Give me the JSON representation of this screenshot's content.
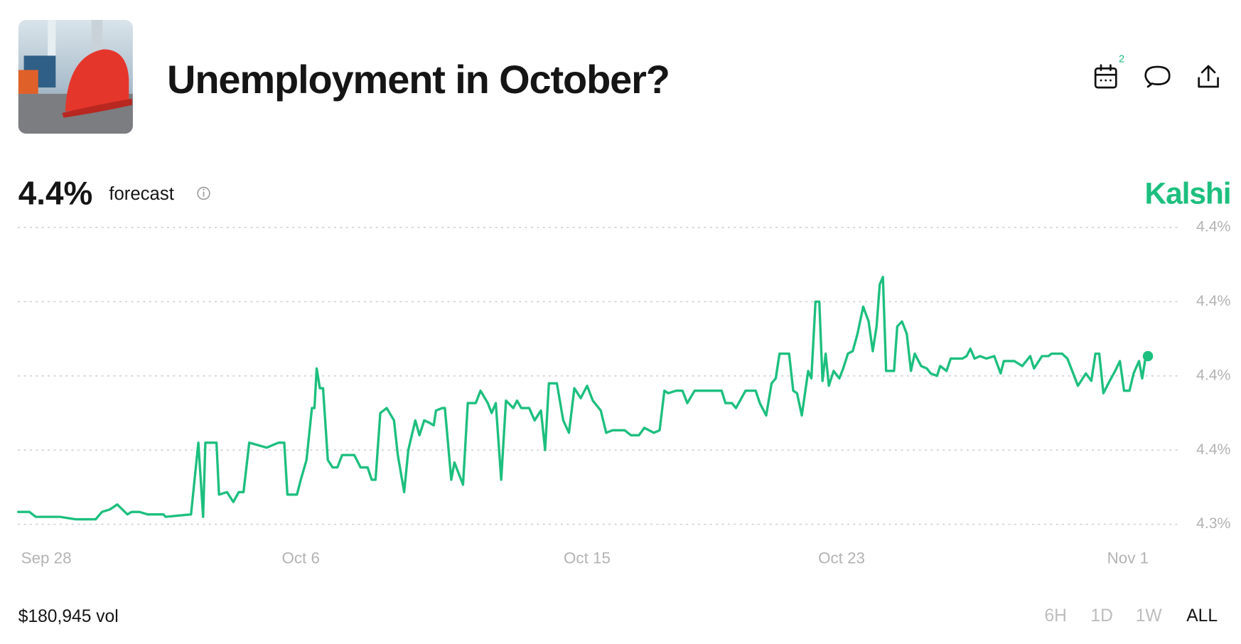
{
  "header": {
    "title": "Unemployment in October?",
    "forecast": "4.4%",
    "forecast_label": "forecast",
    "brand": "Kalshi",
    "calendar_badge": "2"
  },
  "footer": {
    "volume": "$180,945 vol",
    "ranges": [
      "6H",
      "1D",
      "1W",
      "ALL"
    ]
  },
  "chart_data": {
    "type": "line",
    "color": "#1dbf7e",
    "grid": true,
    "x": [
      -0.88,
      -0.53,
      -0.33,
      0.43,
      0.93,
      1.55,
      1.75,
      2.0,
      2.23,
      2.55,
      2.68,
      2.93,
      3.18,
      3.68,
      3.75,
      4.55,
      4.78,
      4.93,
      5.0,
      5.35,
      5.43,
      5.68,
      5.88,
      6.05,
      6.2,
      6.38,
      6.93,
      7.3,
      7.48,
      7.58,
      7.88,
      8.0,
      8.18,
      8.35,
      8.43,
      8.5,
      8.6,
      8.7,
      8.85,
      9.0,
      9.15,
      9.3,
      9.68,
      9.88,
      10.1,
      10.23,
      10.35,
      10.5,
      10.7,
      10.93,
      11.05,
      11.25,
      11.38,
      11.6,
      11.73,
      11.88,
      12.05,
      12.18,
      12.25,
      12.45,
      12.53,
      12.73,
      12.83,
      13.1,
      13.25,
      13.5,
      13.65,
      13.88,
      14.0,
      14.13,
      14.3,
      14.45,
      14.68,
      14.8,
      14.93,
      15.18,
      15.35,
      15.55,
      15.68,
      15.8,
      16.05,
      16.25,
      16.43,
      16.6,
      16.8,
      17.0,
      17.18,
      17.43,
      17.6,
      17.8,
      18.18,
      18.38,
      18.63,
      18.8,
      19.1,
      19.28,
      19.43,
      19.55,
      19.8,
      20.0,
      20.15,
      20.38,
      21.23,
      21.35,
      21.55,
      21.68,
      21.98,
      22.3,
      22.43,
      22.63,
      22.8,
      22.93,
      23.05,
      23.35,
      23.48,
      23.6,
      23.75,
      23.95,
      24.05,
      24.18,
      24.3,
      24.4,
      24.5,
      24.6,
      24.75,
      24.93,
      25.05,
      25.2,
      25.35,
      25.5,
      25.68,
      25.85,
      25.98,
      26.1,
      26.2,
      26.3,
      26.4,
      26.65,
      26.75,
      26.9,
      27.05,
      27.18,
      27.3,
      27.5,
      27.68,
      27.8,
      28.0,
      28.1,
      28.3,
      28.43,
      28.8,
      28.93,
      29.05,
      29.18,
      29.35,
      29.55,
      29.8,
      30.0,
      30.1,
      30.43,
      30.68,
      30.93,
      31.05,
      31.3,
      31.5,
      31.6,
      31.93,
      32.1,
      32.25,
      32.43,
      32.68,
      32.85,
      32.98,
      33.1,
      33.23,
      33.43,
      33.6,
      33.75,
      33.88,
      34.05,
      34.18,
      34.35,
      34.45,
      34.55,
      34.63
    ],
    "values": [
      4.325,
      4.325,
      4.323,
      4.323,
      4.322,
      4.322,
      4.325,
      4.326,
      4.328,
      4.324,
      4.325,
      4.325,
      4.324,
      4.324,
      4.323,
      4.324,
      4.353,
      4.323,
      4.353,
      4.353,
      4.332,
      4.333,
      4.329,
      4.333,
      4.333,
      4.353,
      4.351,
      4.353,
      4.353,
      4.332,
      4.332,
      4.338,
      4.346,
      4.367,
      4.367,
      4.383,
      4.375,
      4.375,
      4.346,
      4.343,
      4.343,
      4.348,
      4.348,
      4.343,
      4.343,
      4.338,
      4.338,
      4.365,
      4.367,
      4.362,
      4.348,
      4.333,
      4.35,
      4.362,
      4.356,
      4.362,
      4.361,
      4.36,
      4.366,
      4.367,
      4.367,
      4.338,
      4.345,
      4.336,
      4.369,
      4.369,
      4.374,
      4.369,
      4.365,
      4.369,
      4.338,
      4.37,
      4.367,
      4.37,
      4.367,
      4.367,
      4.362,
      4.366,
      4.35,
      4.377,
      4.377,
      4.362,
      4.357,
      4.375,
      4.371,
      4.376,
      4.37,
      4.366,
      4.357,
      4.358,
      4.358,
      4.356,
      4.356,
      4.359,
      4.357,
      4.358,
      4.374,
      4.373,
      4.374,
      4.374,
      4.369,
      4.374,
      4.374,
      4.369,
      4.369,
      4.367,
      4.374,
      4.374,
      4.369,
      4.364,
      4.377,
      4.379,
      4.389,
      4.389,
      4.374,
      4.373,
      4.364,
      4.382,
      4.379,
      4.41,
      4.41,
      4.378,
      4.389,
      4.376,
      4.382,
      4.379,
      4.383,
      4.389,
      4.39,
      4.397,
      4.408,
      4.402,
      4.39,
      4.4,
      4.417,
      4.42,
      4.382,
      4.382,
      4.4,
      4.402,
      4.397,
      4.382,
      4.389,
      4.384,
      4.383,
      4.381,
      4.38,
      4.384,
      4.382,
      4.387,
      4.387,
      4.388,
      4.391,
      4.387,
      4.388,
      4.387,
      4.388,
      4.381,
      4.386,
      4.386,
      4.384,
      4.388,
      4.383,
      4.388,
      4.388,
      4.389,
      4.389,
      4.387,
      4.382,
      4.376,
      4.381,
      4.378,
      4.389,
      4.389,
      4.373,
      4.378,
      4.382,
      4.386,
      4.374,
      4.374,
      4.381,
      4.386,
      4.379,
      4.387,
      4.388
    ],
    "xlim": [
      -0.88,
      34.63
    ],
    "xticks": [
      {
        "value": 0,
        "label": "Sep 28"
      },
      {
        "value": 8,
        "label": "Oct 6"
      },
      {
        "value": 17,
        "label": "Oct 15"
      },
      {
        "value": 25,
        "label": "Oct 23"
      },
      {
        "value": 34,
        "label": "Nov 1"
      }
    ],
    "ylim": [
      4.32,
      4.44
    ],
    "yticks": [
      {
        "value": 4.32,
        "label": "4.3%"
      },
      {
        "value": 4.35,
        "label": "4.4%"
      },
      {
        "value": 4.38,
        "label": "4.4%"
      },
      {
        "value": 4.41,
        "label": "4.4%"
      },
      {
        "value": 4.44,
        "label": "4.4%"
      }
    ]
  }
}
